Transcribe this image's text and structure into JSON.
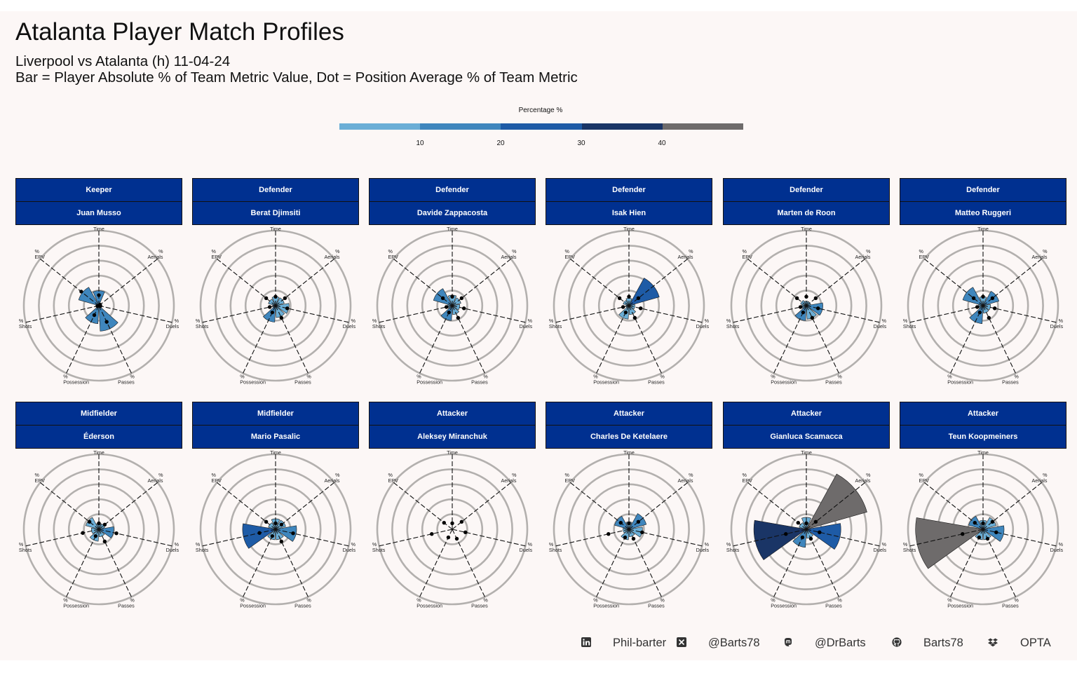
{
  "title": "Atalanta Player Match Profiles",
  "subtitle1": "Liverpool vs Atalanta (h) 11-04-24",
  "subtitle2": "Bar = Player Absolute % of Team Metric Value, Dot = Position Average % of Team Metric",
  "legend": {
    "title": "Percentage %",
    "ticks": [
      "10",
      "20",
      "30",
      "40"
    ],
    "colors": [
      "#6baed6",
      "#3f86bd",
      "#1e5ba6",
      "#1a3566",
      "#6e6b6b"
    ]
  },
  "axis_labels": [
    "% On Ball Time",
    "% Aerials",
    "% Duels",
    "% Passes",
    "% Possession",
    "% Shots",
    "% EPV"
  ],
  "players": [
    {
      "position": "Keeper",
      "name": "Juan Musso"
    },
    {
      "position": "Defender",
      "name": "Berat Djimsiti"
    },
    {
      "position": "Defender",
      "name": "Davide Zappacosta"
    },
    {
      "position": "Defender",
      "name": "Isak Hien"
    },
    {
      "position": "Defender",
      "name": "Marten de Roon"
    },
    {
      "position": "Defender",
      "name": "Matteo Ruggeri"
    },
    {
      "position": "Midfielder",
      "name": "Éderson"
    },
    {
      "position": "Midfielder",
      "name": "Mario Pasalic"
    },
    {
      "position": "Attacker",
      "name": "Aleksey Miranchuk"
    },
    {
      "position": "Attacker",
      "name": "Charles De Ketelaere"
    },
    {
      "position": "Attacker",
      "name": "Gianluca Scamacca"
    },
    {
      "position": "Attacker",
      "name": "Teun Koopmeiners"
    }
  ],
  "chart_data": {
    "type": "polar-bar",
    "metrics": [
      "% On Ball Time",
      "% Aerials",
      "% Duels",
      "% Passes",
      "% Possession",
      "% Shots",
      "% EPV"
    ],
    "r_range": [
      0,
      50
    ],
    "grid_rings": [
      10,
      20,
      30,
      40,
      50
    ],
    "color_scale_breaks": [
      10,
      20,
      30,
      40
    ],
    "players": [
      {
        "name": "Juan Musso",
        "bars": [
          10,
          2,
          2,
          17,
          12,
          2,
          14
        ],
        "dots": [
          7,
          1,
          1,
          12,
          7,
          1,
          15
        ]
      },
      {
        "name": "Berat Djimsiti",
        "bars": [
          6,
          6,
          9,
          8,
          11,
          2,
          5
        ],
        "dots": [
          6,
          8,
          8,
          9,
          5,
          4,
          8
        ]
      },
      {
        "name": "Davide Zappacosta",
        "bars": [
          7,
          6,
          5,
          6,
          10,
          3,
          13
        ],
        "dots": [
          6,
          8,
          8,
          9,
          5,
          4,
          8
        ]
      },
      {
        "name": "Isak Hien",
        "bars": [
          5,
          21,
          4,
          6,
          9,
          2,
          4
        ],
        "dots": [
          6,
          8,
          8,
          9,
          5,
          4,
          8
        ]
      },
      {
        "name": "Marten de Roon",
        "bars": [
          3,
          3,
          11,
          9,
          10,
          3,
          4
        ],
        "dots": [
          6,
          8,
          8,
          9,
          5,
          4,
          8
        ]
      },
      {
        "name": "Matteo Ruggeri",
        "bars": [
          6,
          11,
          5,
          5,
          12,
          3,
          14
        ],
        "dots": [
          6,
          8,
          8,
          9,
          5,
          4,
          8
        ]
      },
      {
        "name": "Éderson",
        "bars": [
          4,
          4,
          10,
          5,
          8,
          5,
          9
        ],
        "dots": [
          4,
          5,
          12,
          9,
          5,
          11,
          8
        ]
      },
      {
        "name": "Mario Pasalic",
        "bars": [
          7,
          7,
          14,
          7,
          7,
          22,
          5
        ],
        "dots": [
          4,
          5,
          12,
          9,
          5,
          11,
          8
        ]
      },
      {
        "name": "Aleksey Miranchuk",
        "bars": [
          0,
          0,
          0,
          0,
          0,
          0,
          0
        ],
        "dots": [
          4,
          8,
          9,
          7,
          6,
          14,
          7
        ]
      },
      {
        "name": "Charles De Ketelaere",
        "bars": [
          5,
          12,
          9,
          5,
          7,
          4,
          10
        ],
        "dots": [
          4,
          8,
          9,
          7,
          6,
          14,
          7
        ]
      },
      {
        "name": "Gianluca Scamacca",
        "bars": [
          8,
          42,
          23,
          6,
          12,
          35,
          5
        ],
        "dots": [
          4,
          8,
          9,
          7,
          6,
          14,
          7
        ]
      },
      {
        "name": "Teun Koopmeiners",
        "bars": [
          6,
          9,
          14,
          7,
          7,
          45,
          10
        ],
        "dots": [
          4,
          8,
          9,
          7,
          6,
          14,
          7
        ]
      }
    ]
  },
  "footer": {
    "linkedin": "Phil-barter",
    "x": "@Barts78",
    "mastodon": "@DrBarts",
    "github": "Barts78",
    "source": "OPTA",
    "icons": [
      "linkedin-icon",
      "x-icon",
      "mastodon-icon",
      "github-icon",
      "dropbox-icon"
    ]
  }
}
